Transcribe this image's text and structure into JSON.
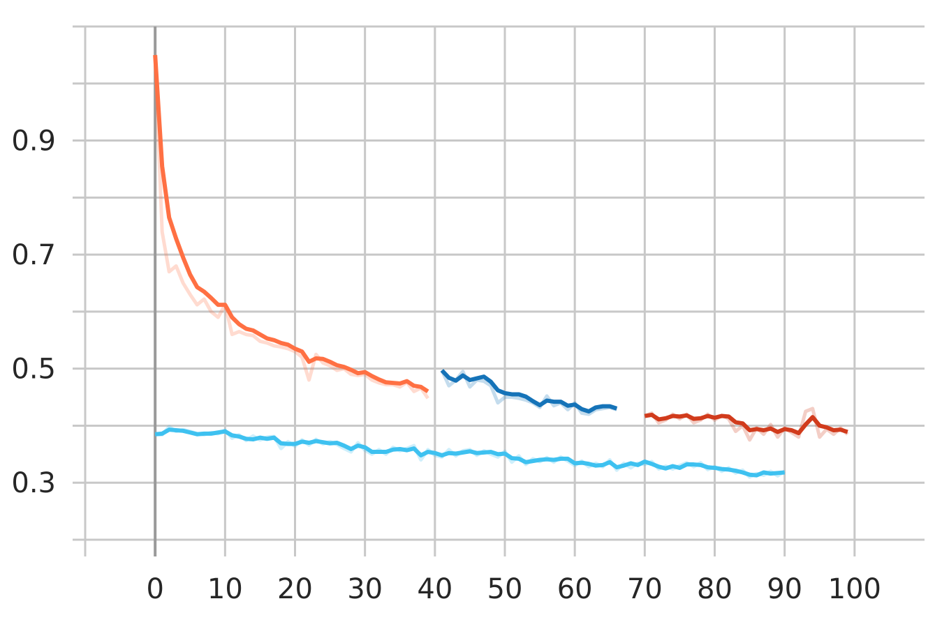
{
  "chart_data": {
    "type": "line",
    "title": "",
    "xlabel": "",
    "ylabel": "",
    "xlim": [
      -10,
      110
    ],
    "ylim": [
      0.2,
      1.1
    ],
    "x_ticks": [
      0,
      10,
      20,
      30,
      40,
      50,
      60,
      70,
      80,
      90,
      100
    ],
    "x_tick_labels": [
      "0",
      "10",
      "20",
      "30",
      "40",
      "50",
      "60",
      "70",
      "80",
      "90",
      "100"
    ],
    "x_minor_grid": [
      -10,
      0,
      10,
      20,
      30,
      40,
      50,
      60,
      70,
      80,
      90,
      100
    ],
    "y_ticks": [
      0.3,
      0.5,
      0.7,
      0.9
    ],
    "y_tick_labels": [
      "0.3",
      "0.5",
      "0.7",
      "0.9"
    ],
    "y_grid": [
      0.2,
      0.3,
      0.4,
      0.5,
      0.6,
      0.7,
      0.8,
      0.9,
      1.0,
      1.1
    ],
    "grid": true,
    "legend": "none",
    "series": [
      {
        "color": "#ff7043",
        "x": [
          0,
          1,
          2,
          3,
          4,
          5,
          6,
          7,
          8,
          9,
          10,
          11,
          12,
          13,
          14,
          15,
          16,
          17,
          18,
          19,
          20,
          21,
          22,
          23,
          24,
          25,
          26,
          27,
          28,
          29,
          30,
          31,
          32,
          33,
          34,
          35,
          36,
          37,
          38,
          39
        ],
        "y": [
          1.05,
          0.855,
          0.765,
          0.728,
          0.695,
          0.665,
          0.643,
          0.635,
          0.624,
          0.612,
          0.612,
          0.59,
          0.578,
          0.57,
          0.567,
          0.56,
          0.553,
          0.55,
          0.545,
          0.542,
          0.535,
          0.53,
          0.512,
          0.518,
          0.517,
          0.512,
          0.506,
          0.503,
          0.498,
          0.492,
          0.494,
          0.487,
          0.481,
          0.476,
          0.475,
          0.474,
          0.478,
          0.47,
          0.468,
          0.46
        ],
        "band": [
          1.05,
          0.74,
          0.67,
          0.68,
          0.65,
          0.63,
          0.612,
          0.622,
          0.6,
          0.59,
          0.612,
          0.56,
          0.565,
          0.56,
          0.558,
          0.548,
          0.545,
          0.54,
          0.538,
          0.535,
          0.53,
          0.52,
          0.48,
          0.525,
          0.51,
          0.505,
          0.497,
          0.5,
          0.49,
          0.488,
          0.49,
          0.48,
          0.475,
          0.472,
          0.472,
          0.468,
          0.476,
          0.46,
          0.466,
          0.448
        ]
      },
      {
        "color": "#1573b8",
        "x": [
          41,
          42,
          43,
          44,
          45,
          46,
          47,
          48,
          49,
          50,
          51,
          52,
          53,
          54,
          55,
          56,
          57,
          58,
          59,
          60,
          61,
          62,
          63,
          64,
          65,
          66
        ],
        "y": [
          0.497,
          0.484,
          0.479,
          0.488,
          0.48,
          0.483,
          0.486,
          0.477,
          0.462,
          0.457,
          0.455,
          0.455,
          0.451,
          0.443,
          0.436,
          0.444,
          0.442,
          0.442,
          0.435,
          0.437,
          0.429,
          0.425,
          0.432,
          0.434,
          0.434,
          0.43
        ],
        "band": [
          0.497,
          0.47,
          0.48,
          0.495,
          0.468,
          0.48,
          0.478,
          0.47,
          0.44,
          0.45,
          0.45,
          0.448,
          0.445,
          0.44,
          0.432,
          0.452,
          0.435,
          0.44,
          0.428,
          0.44,
          0.422,
          0.42,
          0.428,
          0.43,
          0.432,
          0.428
        ]
      },
      {
        "color": "#d13b1c",
        "x": [
          70,
          71,
          72,
          73,
          74,
          75,
          76,
          77,
          78,
          79,
          80,
          81,
          82,
          83,
          84,
          85,
          86,
          87,
          88,
          89,
          90,
          91,
          92,
          93,
          94,
          95,
          96,
          97,
          98,
          99
        ],
        "y": [
          0.417,
          0.419,
          0.411,
          0.413,
          0.417,
          0.416,
          0.418,
          0.412,
          0.413,
          0.417,
          0.414,
          0.417,
          0.416,
          0.406,
          0.404,
          0.392,
          0.394,
          0.392,
          0.395,
          0.389,
          0.394,
          0.392,
          0.387,
          0.402,
          0.415,
          0.4,
          0.397,
          0.392,
          0.393,
          0.389
        ],
        "band": [
          0.417,
          0.422,
          0.405,
          0.41,
          0.42,
          0.412,
          0.42,
          0.405,
          0.41,
          0.42,
          0.41,
          0.418,
          0.412,
          0.39,
          0.4,
          0.375,
          0.396,
          0.385,
          0.402,
          0.38,
          0.396,
          0.388,
          0.38,
          0.425,
          0.43,
          0.38,
          0.394,
          0.385,
          0.396,
          0.385
        ]
      },
      {
        "color": "#3ec1f0",
        "x": [
          0,
          1,
          2,
          3,
          4,
          5,
          6,
          7,
          8,
          9,
          10,
          11,
          12,
          13,
          14,
          15,
          16,
          17,
          18,
          19,
          20,
          21,
          22,
          23,
          24,
          25,
          26,
          27,
          28,
          29,
          30,
          31,
          32,
          33,
          34,
          35,
          36,
          37,
          38,
          39,
          40,
          41,
          42,
          43,
          44,
          45,
          46,
          47,
          48,
          49,
          50,
          51,
          52,
          53,
          54,
          55,
          56,
          57,
          58,
          59,
          60,
          61,
          62,
          63,
          64,
          65,
          66,
          67,
          68,
          69,
          70,
          71,
          72,
          73,
          74,
          75,
          76,
          77,
          78,
          79,
          80,
          81,
          82,
          83,
          84,
          85,
          86,
          87,
          88,
          89,
          90
        ],
        "y": [
          0.385,
          0.386,
          0.393,
          0.392,
          0.391,
          0.388,
          0.385,
          0.386,
          0.386,
          0.388,
          0.39,
          0.383,
          0.381,
          0.377,
          0.376,
          0.379,
          0.377,
          0.379,
          0.369,
          0.368,
          0.368,
          0.372,
          0.37,
          0.373,
          0.371,
          0.369,
          0.37,
          0.365,
          0.359,
          0.365,
          0.362,
          0.354,
          0.354,
          0.354,
          0.358,
          0.359,
          0.357,
          0.36,
          0.348,
          0.354,
          0.352,
          0.348,
          0.352,
          0.351,
          0.353,
          0.355,
          0.352,
          0.353,
          0.354,
          0.35,
          0.351,
          0.343,
          0.342,
          0.336,
          0.338,
          0.34,
          0.341,
          0.34,
          0.342,
          0.342,
          0.334,
          0.335,
          0.333,
          0.33,
          0.331,
          0.336,
          0.327,
          0.33,
          0.334,
          0.331,
          0.337,
          0.333,
          0.328,
          0.325,
          0.329,
          0.326,
          0.332,
          0.332,
          0.331,
          0.327,
          0.326,
          0.324,
          0.323,
          0.321,
          0.318,
          0.314,
          0.313,
          0.318,
          0.316,
          0.317,
          0.318
        ],
        "band": [
          0.385,
          0.384,
          0.398,
          0.39,
          0.393,
          0.39,
          0.386,
          0.384,
          0.388,
          0.386,
          0.392,
          0.378,
          0.384,
          0.374,
          0.382,
          0.375,
          0.38,
          0.381,
          0.36,
          0.372,
          0.364,
          0.375,
          0.366,
          0.376,
          0.368,
          0.372,
          0.367,
          0.36,
          0.354,
          0.37,
          0.357,
          0.35,
          0.358,
          0.35,
          0.362,
          0.356,
          0.36,
          0.365,
          0.34,
          0.358,
          0.348,
          0.345,
          0.358,
          0.347,
          0.356,
          0.358,
          0.348,
          0.356,
          0.35,
          0.345,
          0.355,
          0.336,
          0.347,
          0.332,
          0.342,
          0.337,
          0.344,
          0.336,
          0.345,
          0.338,
          0.33,
          0.338,
          0.328,
          0.334,
          0.328,
          0.34,
          0.322,
          0.334,
          0.326,
          0.334,
          0.332,
          0.337,
          0.324,
          0.329,
          0.324,
          0.33,
          0.335,
          0.328,
          0.335,
          0.323,
          0.328,
          0.32,
          0.326,
          0.317,
          0.322,
          0.31,
          0.316,
          0.313,
          0.32,
          0.312,
          0.32
        ]
      }
    ]
  }
}
